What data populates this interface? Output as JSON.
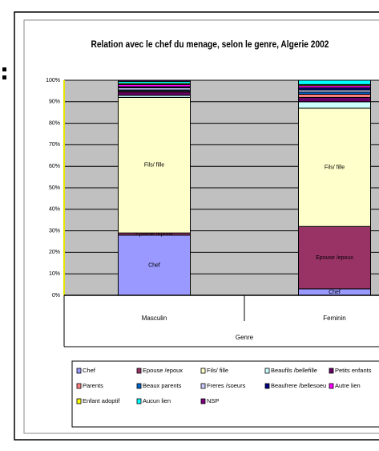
{
  "chart_data": {
    "type": "stacked_bar_100",
    "title": "Relation avec le chef du menage, selon le genre, Algerie 2002",
    "x_label": "Genre",
    "categories": [
      "Masculin",
      "Feminin"
    ],
    "ylim": [
      0,
      100
    ],
    "yticks": [
      {
        "value": 0,
        "label": "0%"
      },
      {
        "value": 10,
        "label": "10%"
      },
      {
        "value": 20,
        "label": "20%"
      },
      {
        "value": 30,
        "label": "30%"
      },
      {
        "value": 40,
        "label": "40%"
      },
      {
        "value": 50,
        "label": "50%"
      },
      {
        "value": 60,
        "label": "60%"
      },
      {
        "value": 70,
        "label": "70%"
      },
      {
        "value": 80,
        "label": "80%"
      },
      {
        "value": 90,
        "label": "90%"
      },
      {
        "value": 100,
        "label": "100%"
      }
    ],
    "grid": true,
    "series": [
      {
        "name": "Chef",
        "color": "#9999ff",
        "values": [
          28,
          3
        ],
        "show_labels": true
      },
      {
        "name": "Epouse /epoux",
        "color": "#993366",
        "values": [
          1,
          29
        ],
        "show_labels": true
      },
      {
        "name": "Fils/ fille",
        "color": "#ffffcc",
        "values": [
          63,
          55
        ],
        "show_labels": true
      },
      {
        "name": "Beaufils /bellefille",
        "color": "#ccffff",
        "values": [
          1,
          3
        ]
      },
      {
        "name": "Petits enfants",
        "color": "#660066",
        "values": [
          1.5,
          2
        ]
      },
      {
        "name": "Parents",
        "color": "#ff8080",
        "values": [
          0.5,
          1.5
        ]
      },
      {
        "name": "Beaux parents",
        "color": "#0066cc",
        "values": [
          0.5,
          1
        ]
      },
      {
        "name": "Freres /soeurs",
        "color": "#ccccff",
        "values": [
          1,
          1
        ]
      },
      {
        "name": "Beaufrere /bellesoeu",
        "color": "#000080",
        "values": [
          0.5,
          1
        ]
      },
      {
        "name": "Autre lien",
        "color": "#ff00ff",
        "values": [
          1,
          1
        ]
      },
      {
        "name": "Enfant adoptif",
        "color": "#ffff00",
        "values": [
          0.5,
          0.5
        ]
      },
      {
        "name": "Aucun lien",
        "color": "#00ffff",
        "values": [
          1,
          2
        ]
      },
      {
        "name": "NSP",
        "color": "#800080",
        "values": [
          0.5,
          0
        ]
      }
    ]
  }
}
